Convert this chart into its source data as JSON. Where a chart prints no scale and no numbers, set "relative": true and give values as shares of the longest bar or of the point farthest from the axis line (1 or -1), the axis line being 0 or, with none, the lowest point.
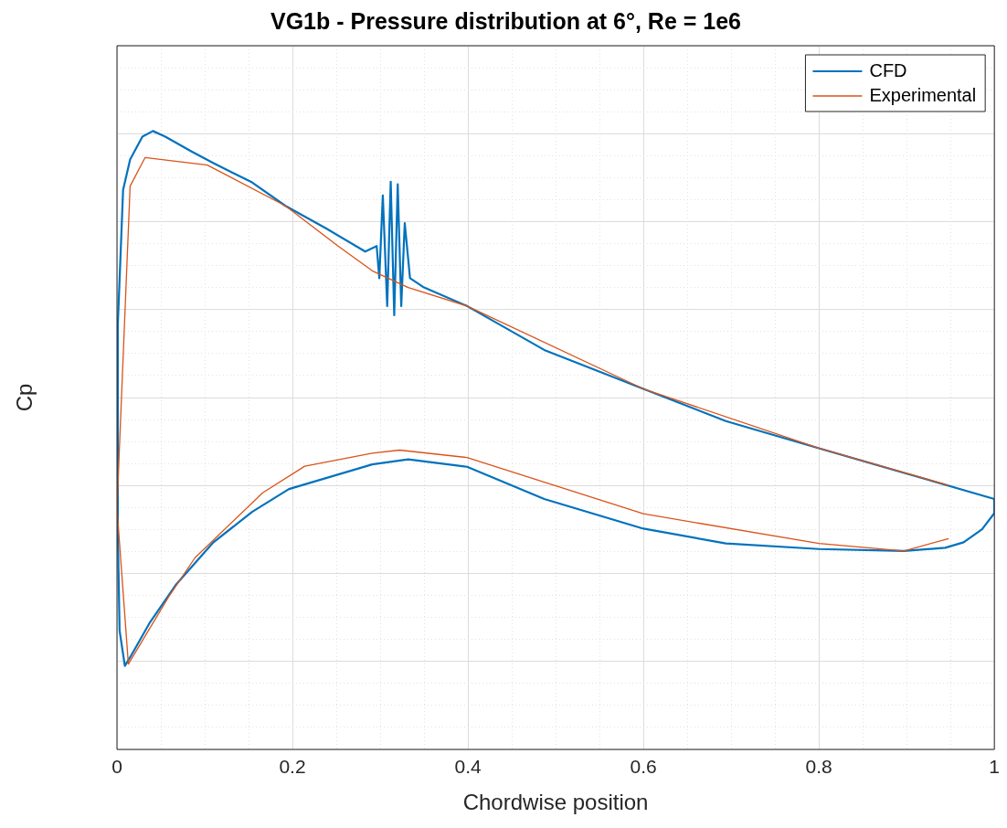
{
  "chart_data": {
    "type": "line",
    "title": "VG1b - Pressure distribution at 6°, Re = 1e6",
    "xlabel": "Chordwise position",
    "ylabel": "Cp",
    "relative": true,
    "xlim": [
      0,
      1
    ],
    "xticks": [
      0,
      0.2,
      0.4,
      0.6,
      0.8,
      1
    ],
    "grid": true,
    "legend": "top right",
    "series": [
      {
        "name": "CFD",
        "color": "#0072bd",
        "x": [
          0,
          0.001,
          0.007,
          0.015,
          0.029,
          0.041,
          0.055,
          0.085,
          0.11,
          0.154,
          0.192,
          0.239,
          0.283,
          0.296,
          0.299,
          0.303,
          0.308,
          0.312,
          0.316,
          0.32,
          0.324,
          0.328,
          0.334,
          0.35,
          0.399,
          0.487,
          0.6,
          0.694,
          0.8,
          0.9,
          1.0
        ],
        "values": [
          0.424,
          0.688,
          0.905,
          0.954,
          0.991,
          1.0,
          0.991,
          0.967,
          0.948,
          0.917,
          0.879,
          0.842,
          0.805,
          0.814,
          0.762,
          0.896,
          0.717,
          0.918,
          0.702,
          0.914,
          0.717,
          0.851,
          0.762,
          0.747,
          0.717,
          0.646,
          0.583,
          0.531,
          0.487,
          0.446,
          0.405
        ]
      },
      {
        "color": "#0072bd",
        "x": [
          0,
          0.001,
          0.003,
          0.009,
          0.015,
          0.037,
          0.067,
          0.11,
          0.154,
          0.196,
          0.291,
          0.332,
          0.399,
          0.487,
          0.6,
          0.694,
          0.8,
          0.897,
          0.944,
          0.965,
          0.986,
          1.0,
          1.0
        ],
        "values": [
          0.424,
          0.347,
          0.192,
          0.135,
          0.149,
          0.204,
          0.266,
          0.335,
          0.384,
          0.421,
          0.461,
          0.469,
          0.457,
          0.405,
          0.357,
          0.333,
          0.324,
          0.321,
          0.326,
          0.335,
          0.356,
          0.382,
          0.405
        ]
      },
      {
        "name": "Experimental",
        "color": "#d95319",
        "x": [
          0.948,
          0.897,
          0.8,
          0.6,
          0.399,
          0.322,
          0.291,
          0.214,
          0.166,
          0.089,
          0.059,
          0.013,
          0,
          0.015,
          0.032,
          0.103,
          0.192,
          0.252,
          0.291,
          0.332,
          0.399,
          0.6,
          0.8,
          0.948
        ],
        "values": [
          0.341,
          0.321,
          0.333,
          0.381,
          0.472,
          0.484,
          0.479,
          0.458,
          0.415,
          0.31,
          0.247,
          0.138,
          0.39,
          0.911,
          0.957,
          0.945,
          0.879,
          0.814,
          0.774,
          0.747,
          0.717,
          0.583,
          0.487,
          0.427
        ]
      }
    ]
  }
}
